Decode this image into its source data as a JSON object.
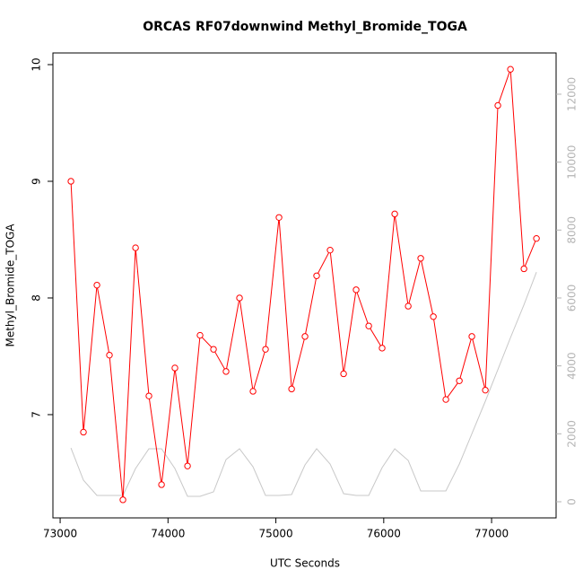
{
  "chart_data": {
    "type": "line",
    "title": "ORCAS RF07downwind Methyl_Bromide_TOGA",
    "x_label": "UTC Seconds",
    "y_label": "Methyl_Bromide_TOGA",
    "x": [
      73100,
      73216,
      73341,
      73457,
      73582,
      73699,
      73823,
      73940,
      74064,
      74181,
      74297,
      74422,
      74538,
      74663,
      74788,
      74904,
      75029,
      75146,
      75270,
      75378,
      75503,
      75628,
      75744,
      75861,
      75985,
      76102,
      76227,
      76343,
      76460,
      76576,
      76701,
      76817,
      76942,
      77058,
      77175,
      77300,
      77416
    ],
    "series": [
      {
        "color": "#ff0000",
        "markers": true,
        "values": [
          9.0,
          6.85,
          8.11,
          7.51,
          6.27,
          8.43,
          7.16,
          6.4,
          7.4,
          6.56,
          7.68,
          7.56,
          7.37,
          8.0,
          7.2,
          7.56,
          8.69,
          7.22,
          7.67,
          8.19,
          8.41,
          7.35,
          8.07,
          7.76,
          7.57,
          8.72,
          7.93,
          8.34,
          7.84,
          7.13,
          7.29,
          7.67,
          7.21,
          9.65,
          9.96,
          8.25,
          8.51
        ]
      },
      {
        "color": "#c8c8c8",
        "markers": false,
        "axis": "y2",
        "values": [
          1585,
          634,
          185,
          185,
          185,
          977,
          1560,
          1560,
          977,
          158,
          158,
          290,
          1241,
          1560,
          1030,
          185,
          185,
          211,
          1083,
          1560,
          1110,
          238,
          185,
          185,
          1004,
          1560,
          1215,
          317,
          317,
          317,
          1110,
          2000,
          2960,
          3890,
          4830,
          5800,
          6760
        ]
      }
    ],
    "xlim": [
      72933,
      77598
    ],
    "xticks": [
      73000,
      74000,
      75000,
      76000,
      77000
    ],
    "ylim": [
      6.115,
      10.1
    ],
    "yticks": [
      7,
      8,
      9,
      10
    ],
    "y2lim": [
      -476,
      13215
    ],
    "y2ticks": [
      0,
      2000,
      4000,
      6000,
      8000,
      10000,
      12000
    ],
    "y2_color": "#b4b4b4"
  }
}
